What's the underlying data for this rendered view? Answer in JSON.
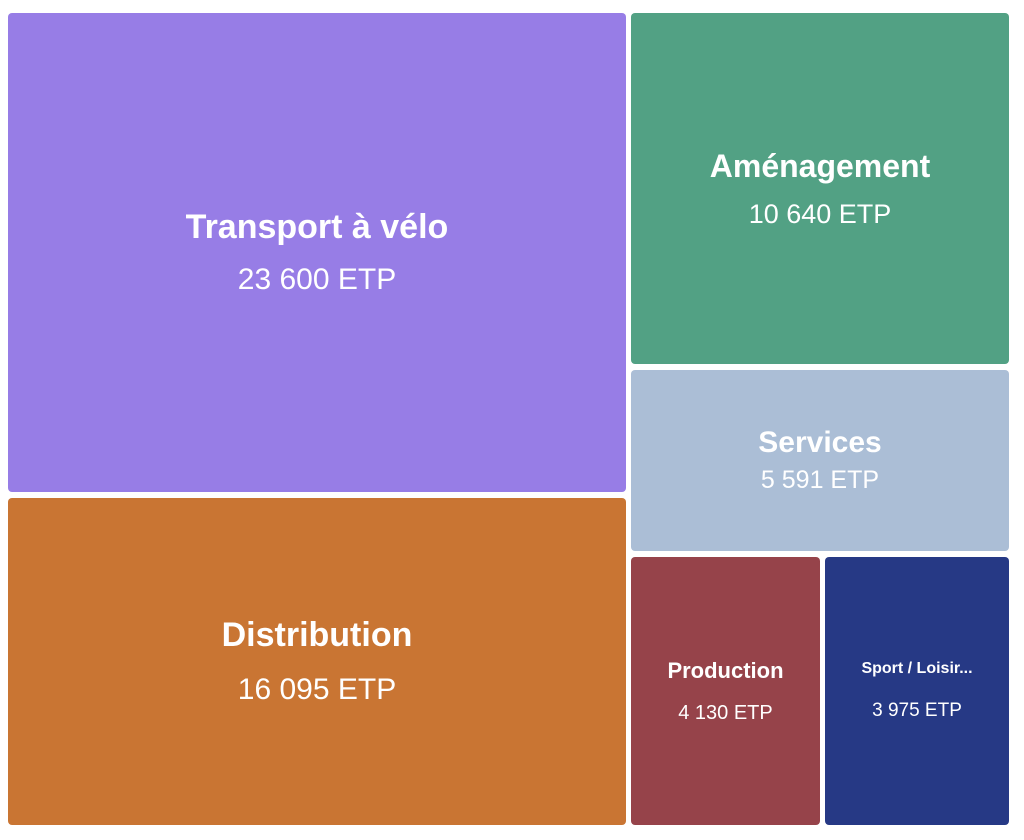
{
  "chart_data": {
    "type": "treemap",
    "unit": "ETP",
    "items": [
      {
        "name": "Transport à vélo",
        "value": 23600,
        "label": "23 600 ETP",
        "color": "#977de6"
      },
      {
        "name": "Distribution",
        "value": 16095,
        "label": "16 095 ETP",
        "color": "#c97533"
      },
      {
        "name": "Aménagement",
        "value": 10640,
        "label": "10 640 ETP",
        "color": "#52a184"
      },
      {
        "name": "Services",
        "value": 5591,
        "label": "5 591 ETP",
        "color": "#abbed6"
      },
      {
        "name": "Production",
        "value": 4130,
        "label": "4 130 ETP",
        "color": "#96434a"
      },
      {
        "name": "Sport / Loisir...",
        "value": 3975,
        "label": "3 975 ETP",
        "color": "#263985"
      }
    ]
  }
}
